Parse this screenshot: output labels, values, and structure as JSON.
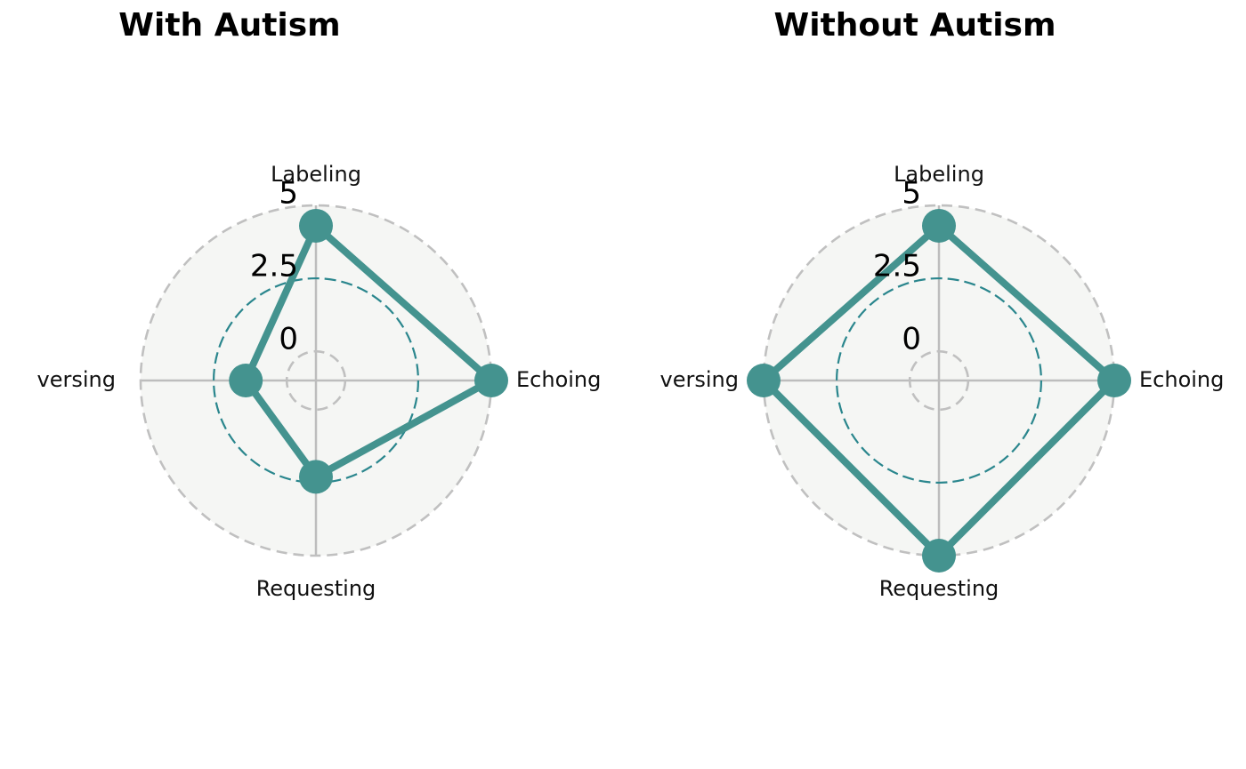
{
  "chart_data": [
    {
      "type": "radar",
      "title": "With Autism",
      "axes": [
        "Labeling",
        "Echoing",
        "Requesting",
        "versing"
      ],
      "values": [
        4.3,
        5.0,
        2.3,
        1.4
      ],
      "ylim": [
        -1,
        5
      ],
      "ticks": [
        0,
        2.5,
        5
      ],
      "tick_labels": [
        "0",
        "2.5",
        "5"
      ],
      "grid": true
    },
    {
      "type": "radar",
      "title": "Without Autism",
      "axes": [
        "Labeling",
        "Echoing",
        "Requesting",
        "versing"
      ],
      "values": [
        4.3,
        5.0,
        5.0,
        5.0
      ],
      "ylim": [
        -1,
        5
      ],
      "ticks": [
        0,
        2.5,
        5
      ],
      "tick_labels": [
        "0",
        "2.5",
        "5"
      ],
      "grid": true
    }
  ],
  "colors": {
    "series": "#44938f",
    "mid_grid": "#2a868d",
    "outer_grid": "#c0c0c0",
    "spokes": "#bdbdbd",
    "panel_fill": "#f5f6f4"
  }
}
